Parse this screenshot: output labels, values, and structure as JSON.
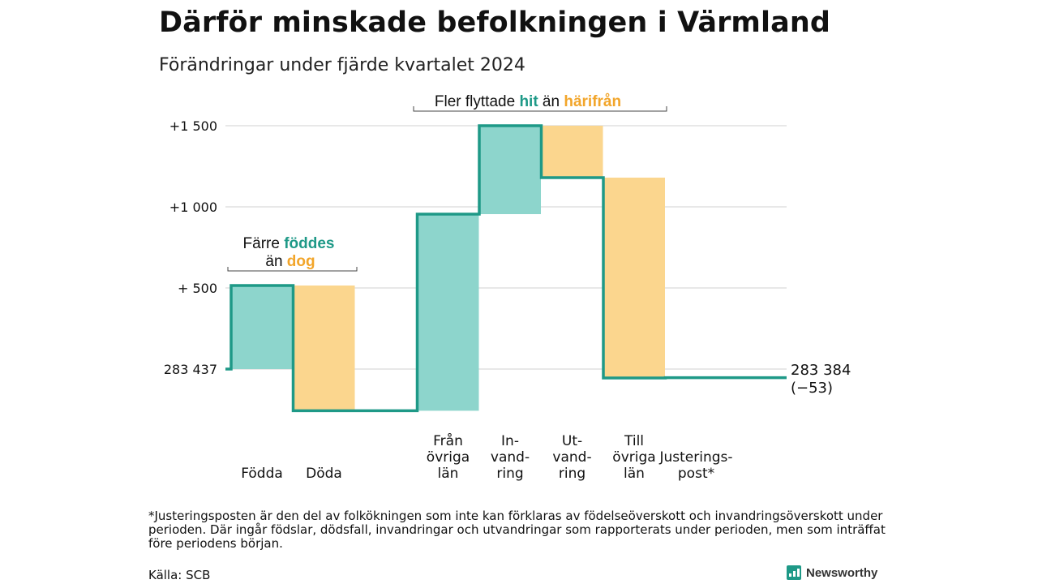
{
  "title": "Därför minskade befolkningen i Värmland",
  "subtitle": "Förändringar under fjärde kvartalet 2024",
  "chart_data": {
    "type": "waterfall",
    "start_label": "283 437",
    "end_label": "283 384",
    "end_change_label": "(−53)",
    "ylim": [
      -260,
      1500
    ],
    "y_ticks": [
      {
        "value": 0,
        "label": "283 437"
      },
      {
        "value": 500,
        "label": "+  500"
      },
      {
        "value": 1000,
        "label": "+1 000"
      },
      {
        "value": 1500,
        "label": "+1 500"
      }
    ],
    "steps": [
      {
        "category": "Födda",
        "lines": [
          "Födda"
        ],
        "change": 515,
        "type": "gain"
      },
      {
        "category": "Döda",
        "lines": [
          "Döda"
        ],
        "change": -772,
        "type": "loss"
      },
      {
        "category": "",
        "lines": [],
        "change": 0,
        "type": "gap"
      },
      {
        "category": "Från övriga län",
        "lines": [
          "Från",
          "övriga",
          "län"
        ],
        "change": 1212,
        "type": "gain"
      },
      {
        "category": "In-vandring",
        "lines": [
          "In-",
          "vand-",
          "ring"
        ],
        "change": 545,
        "type": "gain"
      },
      {
        "category": "Ut-vandring",
        "lines": [
          "Ut-",
          "vand-",
          "ring"
        ],
        "change": -320,
        "type": "loss"
      },
      {
        "category": "Till övriga län",
        "lines": [
          "Till",
          "övriga",
          "län"
        ],
        "change": -1235,
        "type": "loss"
      },
      {
        "category": "Justerings-post*",
        "lines": [
          "Justerings-",
          "post*"
        ],
        "change": 2,
        "type": "adjust"
      }
    ],
    "colors": {
      "gain": "#8dd5cc",
      "loss": "#fbd68e",
      "line": "#1e9987",
      "grid": "#d9d9d9"
    },
    "annotations": [
      {
        "name": "birth-death-annotation",
        "parts": [
          {
            "text": "Färre ",
            "style": "plain"
          },
          {
            "text": "föddes",
            "style": "teal"
          },
          {
            "text": "än ",
            "style": "plain",
            "newline": true
          },
          {
            "text": "dog",
            "style": "orange"
          }
        ]
      },
      {
        "name": "migration-annotation",
        "parts": [
          {
            "text": "Fler flyttade ",
            "style": "plain"
          },
          {
            "text": "hit",
            "style": "teal"
          },
          {
            "text": "  än ",
            "style": "plain"
          },
          {
            "text": "härifrån",
            "style": "orange"
          }
        ]
      }
    ]
  },
  "footnote": "*Justeringsposten är den del av folkökningen som inte kan förklaras av födelseöverskott och invandringsöverskott under perioden. Där ingår födslar, dödsfall, invandringar och utvandringar som rapporterats under perioden, men som inträffat före periodens början.",
  "source": "Källa: SCB",
  "brand": {
    "name": "Newsworthy",
    "icon": "bar-chart-icon"
  }
}
